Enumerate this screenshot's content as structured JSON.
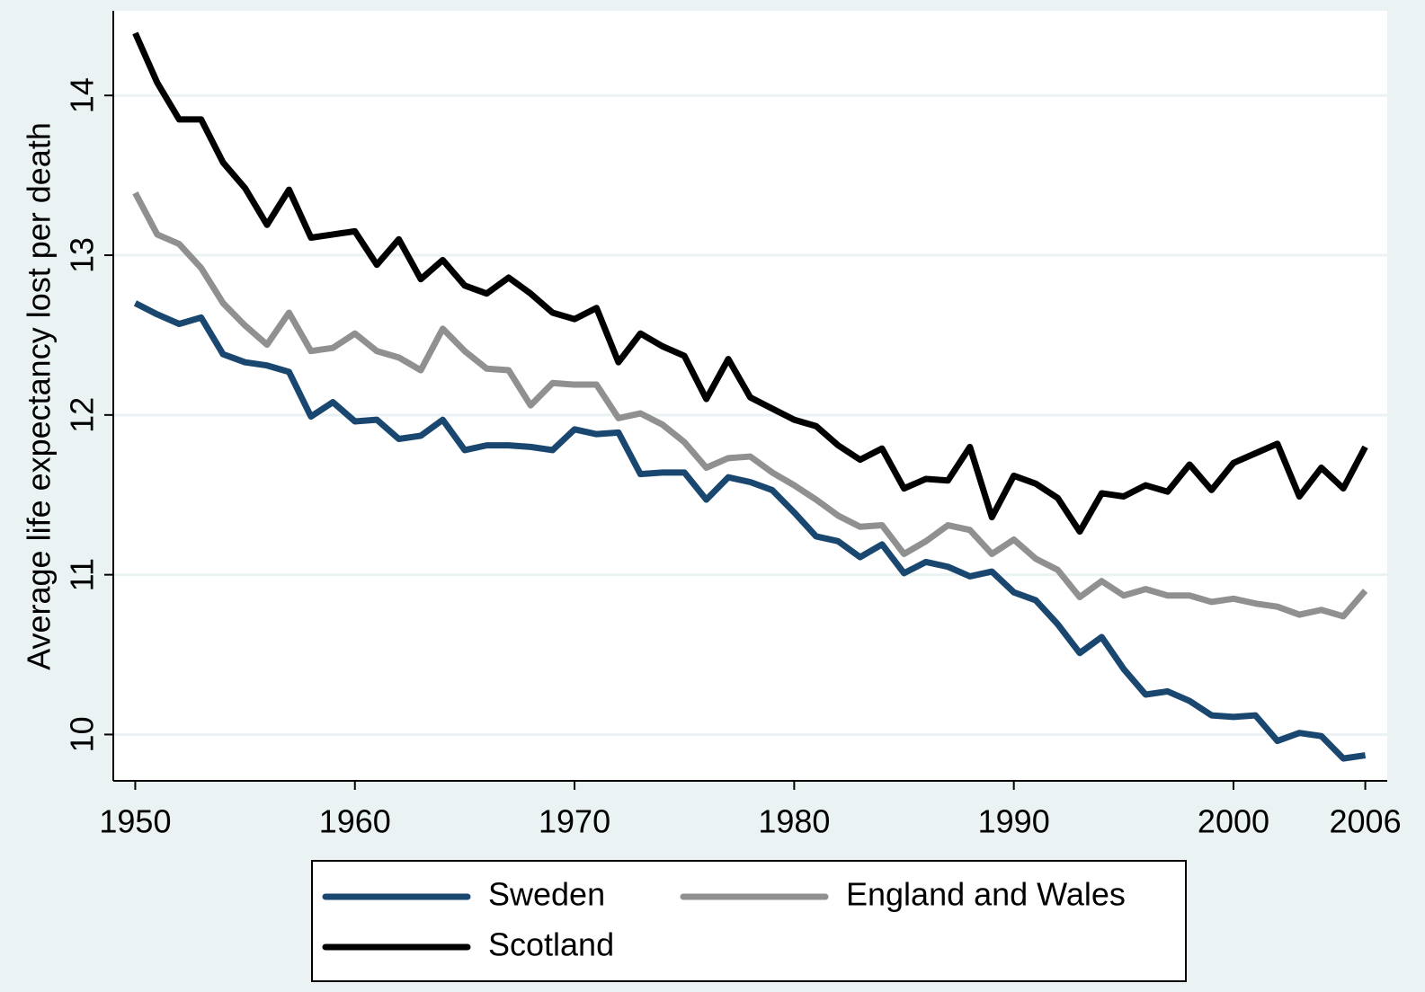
{
  "chart_data": {
    "type": "line",
    "ylabel": "Average life expectancy lost per death",
    "x": [
      1950,
      1951,
      1952,
      1953,
      1954,
      1955,
      1956,
      1957,
      1958,
      1959,
      1960,
      1961,
      1962,
      1963,
      1964,
      1965,
      1966,
      1967,
      1968,
      1969,
      1970,
      1971,
      1972,
      1973,
      1974,
      1975,
      1976,
      1977,
      1978,
      1979,
      1980,
      1981,
      1982,
      1983,
      1984,
      1985,
      1986,
      1987,
      1988,
      1989,
      1990,
      1991,
      1992,
      1993,
      1994,
      1995,
      1996,
      1997,
      1998,
      1999,
      2000,
      2001,
      2002,
      2003,
      2004,
      2005,
      2006
    ],
    "series": [
      {
        "name": "Sweden",
        "color": "#1a476f",
        "values": [
          12.7,
          12.63,
          12.57,
          12.61,
          12.38,
          12.33,
          12.31,
          12.27,
          11.99,
          12.08,
          11.96,
          11.97,
          11.85,
          11.87,
          11.97,
          11.78,
          11.81,
          11.81,
          11.8,
          11.78,
          11.91,
          11.88,
          11.89,
          11.63,
          11.64,
          11.64,
          11.47,
          11.61,
          11.58,
          11.53,
          11.39,
          11.24,
          11.21,
          11.11,
          11.19,
          11.01,
          11.08,
          11.05,
          10.99,
          11.02,
          10.89,
          10.84,
          10.69,
          10.51,
          10.61,
          10.41,
          10.25,
          10.27,
          10.21,
          10.12,
          10.11,
          10.12,
          9.96,
          10.01,
          9.99,
          9.85,
          9.87
        ]
      },
      {
        "name": "England and Wales",
        "color": "#909090",
        "values": [
          13.39,
          13.13,
          13.07,
          12.92,
          12.7,
          12.56,
          12.44,
          12.64,
          12.4,
          12.42,
          12.51,
          12.4,
          12.36,
          12.28,
          12.54,
          12.4,
          12.29,
          12.28,
          12.06,
          12.2,
          12.19,
          12.19,
          11.98,
          12.01,
          11.94,
          11.83,
          11.67,
          11.73,
          11.74,
          11.64,
          11.56,
          11.47,
          11.37,
          11.3,
          11.31,
          11.13,
          11.21,
          11.31,
          11.28,
          11.13,
          11.22,
          11.1,
          11.03,
          10.86,
          10.96,
          10.87,
          10.91,
          10.87,
          10.87,
          10.83,
          10.85,
          10.82,
          10.8,
          10.75,
          10.78,
          10.74,
          10.9
        ]
      },
      {
        "name": "Scotland",
        "color": "#000000",
        "values": [
          14.39,
          14.08,
          13.85,
          13.85,
          13.58,
          13.42,
          13.19,
          13.41,
          13.11,
          13.13,
          13.15,
          12.94,
          13.1,
          12.85,
          12.97,
          12.81,
          12.76,
          12.86,
          12.76,
          12.64,
          12.6,
          12.67,
          12.33,
          12.51,
          12.43,
          12.37,
          12.1,
          12.35,
          12.11,
          12.04,
          11.97,
          11.93,
          11.81,
          11.72,
          11.79,
          11.54,
          11.6,
          11.59,
          11.8,
          11.36,
          11.62,
          11.57,
          11.48,
          11.27,
          11.51,
          11.49,
          11.56,
          11.52,
          11.69,
          11.53,
          11.7,
          11.76,
          11.82,
          11.49,
          11.67,
          11.54,
          11.8
        ]
      }
    ],
    "xlim": [
      1949,
      2007
    ],
    "xticks": [
      1950,
      1960,
      1970,
      1980,
      1990,
      2000,
      2006
    ],
    "ylim": [
      9.71,
      14.53
    ],
    "yticks": [
      10,
      11,
      12,
      13,
      14
    ],
    "grid": true,
    "legend": "bottom"
  }
}
